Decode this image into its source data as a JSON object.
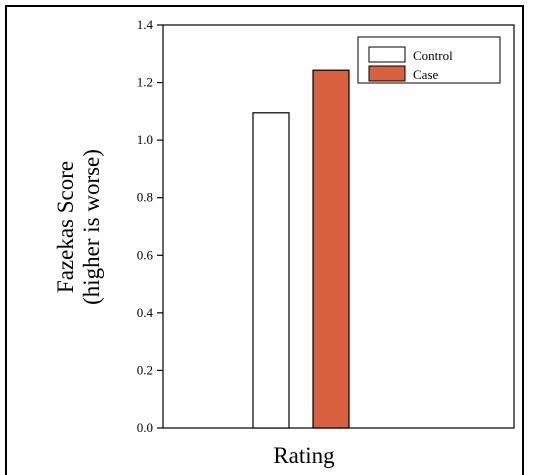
{
  "chart_data": {
    "type": "bar",
    "title": "",
    "xlabel": "Rating",
    "ylabel": [
      "Fazekas Score",
      "(higher is worse)"
    ],
    "ylim": [
      0,
      1.4
    ],
    "yticks": [
      "0.0",
      "0.2",
      "0.4",
      "0.6",
      "0.8",
      "1.0",
      "1.2",
      "1.4"
    ],
    "categories": [
      "Rating"
    ],
    "series": [
      {
        "name": "Control",
        "values": [
          1.095
        ],
        "color": "#ffffff"
      },
      {
        "name": "Case",
        "values": [
          1.243
        ],
        "color": "#d9603f"
      }
    ],
    "grid": false,
    "legend_position": "top-right"
  }
}
